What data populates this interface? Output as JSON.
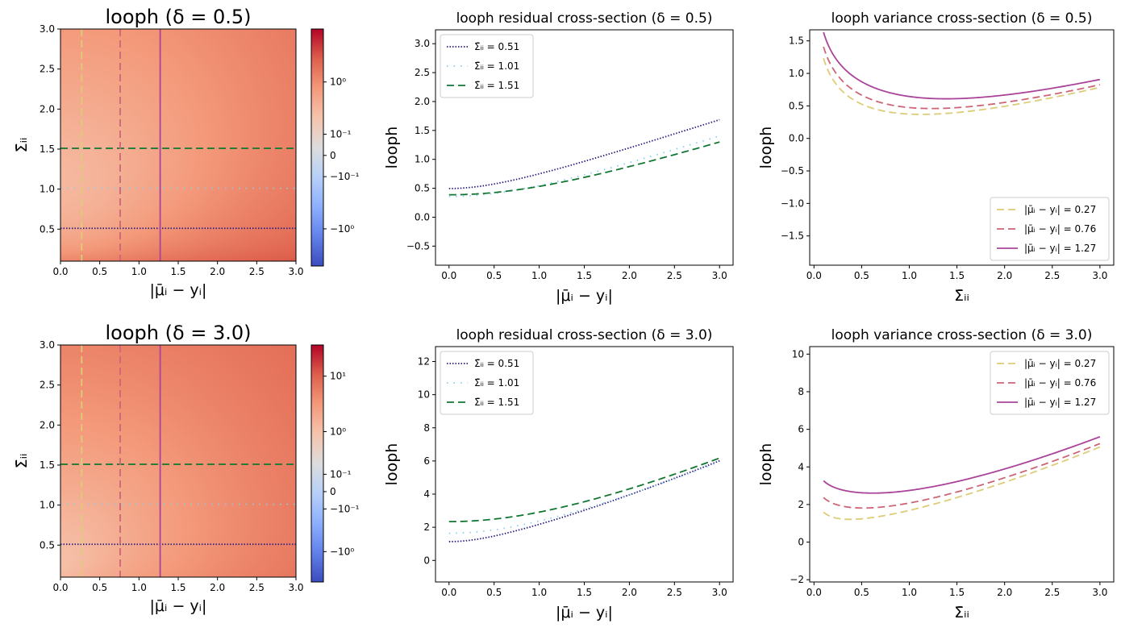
{
  "chart_data": [
    {
      "id": "heat1",
      "type": "heatmap",
      "title": "looph (δ = 0.5)",
      "xlabel": "|μ̄ᵢ − yᵢ|",
      "ylabel": "Σ̄ᵢᵢ",
      "delta": 0.5,
      "xlim": [
        0,
        3.0
      ],
      "ylim": [
        0.1,
        3.0
      ],
      "xticks": [
        "0.0",
        "0.5",
        "1.0",
        "1.5",
        "2.0",
        "2.5",
        "3.0"
      ],
      "yticks": [
        "0.5",
        "1.0",
        "1.5",
        "2.0",
        "2.5",
        "3.0"
      ],
      "colorbar": {
        "scale": "symlog",
        "ticks": [
          "10⁰",
          "10⁻¹",
          "0",
          "−10⁻¹",
          "−10⁰"
        ],
        "range": [
          -3.6,
          6.1
        ]
      },
      "overlays": [
        {
          "orient": "h",
          "value": 0.51,
          "color": "#2a1f80",
          "style": "dotted"
        },
        {
          "orient": "h",
          "value": 1.01,
          "color": "#88ccee",
          "style": "loose-dotted"
        },
        {
          "orient": "h",
          "value": 1.51,
          "color": "#117733",
          "style": "dashed"
        },
        {
          "orient": "v",
          "value": 0.27,
          "color": "#ddcc77",
          "style": "dashed"
        },
        {
          "orient": "v",
          "value": 0.76,
          "color": "#cc6677",
          "style": "dashed"
        },
        {
          "orient": "v",
          "value": 1.27,
          "color": "#aa4499",
          "style": "solid"
        }
      ]
    },
    {
      "id": "res1",
      "type": "line",
      "title": "looph residual cross-section (δ = 0.5)",
      "xlabel": "|μ̄ᵢ − yᵢ|",
      "ylabel": "looph",
      "delta": 0.5,
      "xlim": [
        -0.15,
        3.15
      ],
      "ylim": [
        -0.83,
        3.24
      ],
      "xticks": [
        0,
        0.5,
        1.0,
        1.5,
        2.0,
        2.5,
        3.0
      ],
      "xtick_labels": [
        "0.0",
        "0.5",
        "1.0",
        "1.5",
        "2.0",
        "2.5",
        "3.0"
      ],
      "yticks": [
        -0.5,
        0,
        0.5,
        1.0,
        1.5,
        2.0,
        2.5,
        3.0
      ],
      "ytick_labels": [
        "−0.5",
        "0.0",
        "0.5",
        "1.0",
        "1.5",
        "2.0",
        "2.5",
        "3.0"
      ],
      "legend_position": "upper-left",
      "series": [
        {
          "name": "Σ̄ᵢᵢ = 0.51",
          "sigma": 0.51,
          "color": "#2a1f80",
          "style": "dotted"
        },
        {
          "name": "Σ̄ᵢᵢ = 1.01",
          "sigma": 1.01,
          "color": "#88ccee",
          "style": "loose-dotted"
        },
        {
          "name": "Σ̄ᵢᵢ = 1.51",
          "sigma": 1.51,
          "color": "#117733",
          "style": "dashed"
        }
      ]
    },
    {
      "id": "var1",
      "type": "line",
      "title": "looph variance cross-section (δ = 0.5)",
      "xlabel": "Σ̄ᵢᵢ",
      "ylabel": "looph",
      "delta": 0.5,
      "xlim": [
        -0.045,
        3.145
      ],
      "ylim": [
        -1.95,
        1.67
      ],
      "xticks": [
        0,
        0.5,
        1.0,
        1.5,
        2.0,
        2.5,
        3.0
      ],
      "xtick_labels": [
        "0.0",
        "0.5",
        "1.0",
        "1.5",
        "2.0",
        "2.5",
        "3.0"
      ],
      "yticks": [
        -1.5,
        -1.0,
        -0.5,
        0,
        0.5,
        1.0,
        1.5
      ],
      "ytick_labels": [
        "−1.5",
        "−1.0",
        "−0.5",
        "0.0",
        "0.5",
        "1.0",
        "1.5"
      ],
      "legend_position": "lower-right",
      "series": [
        {
          "name": "|μ̄ᵢ − yᵢ| = 0.27",
          "r": 0.27,
          "color": "#ddcc77",
          "style": "dashed"
        },
        {
          "name": "|μ̄ᵢ − yᵢ| = 0.76",
          "r": 0.76,
          "color": "#cc6677",
          "style": "dashed"
        },
        {
          "name": "|μ̄ᵢ − yᵢ| = 1.27",
          "r": 1.27,
          "color": "#aa4499",
          "style": "solid"
        }
      ]
    },
    {
      "id": "heat2",
      "type": "heatmap",
      "title": "looph (δ = 3.0)",
      "xlabel": "|μ̄ᵢ − yᵢ|",
      "ylabel": "Σ̄ᵢᵢ",
      "delta": 3.0,
      "xlim": [
        0,
        3.0
      ],
      "ylim": [
        0.1,
        3.0
      ],
      "xticks": [
        "0.0",
        "0.5",
        "1.0",
        "1.5",
        "2.0",
        "2.5",
        "3.0"
      ],
      "yticks": [
        "0.5",
        "1.0",
        "1.5",
        "2.0",
        "2.5",
        "3.0"
      ],
      "colorbar": {
        "scale": "symlog",
        "ticks": [
          "10¹",
          "10⁰",
          "10⁻¹",
          "0",
          "−10⁻¹",
          "−10⁰"
        ],
        "range": [
          -3.6,
          35
        ]
      },
      "overlays": [
        {
          "orient": "h",
          "value": 0.51,
          "color": "#2a1f80",
          "style": "dotted"
        },
        {
          "orient": "h",
          "value": 1.01,
          "color": "#88ccee",
          "style": "loose-dotted"
        },
        {
          "orient": "h",
          "value": 1.51,
          "color": "#117733",
          "style": "dashed"
        },
        {
          "orient": "v",
          "value": 0.27,
          "color": "#ddcc77",
          "style": "dashed"
        },
        {
          "orient": "v",
          "value": 0.76,
          "color": "#cc6677",
          "style": "dashed"
        },
        {
          "orient": "v",
          "value": 1.27,
          "color": "#aa4499",
          "style": "solid"
        }
      ]
    },
    {
      "id": "res2",
      "type": "line",
      "title": "looph residual cross-section (δ = 3.0)",
      "xlabel": "|μ̄ᵢ − yᵢ|",
      "ylabel": "looph",
      "delta": 3.0,
      "xlim": [
        -0.15,
        3.15
      ],
      "ylim": [
        -1.3,
        12.9
      ],
      "xticks": [
        0,
        0.5,
        1.0,
        1.5,
        2.0,
        2.5,
        3.0
      ],
      "xtick_labels": [
        "0.0",
        "0.5",
        "1.0",
        "1.5",
        "2.0",
        "2.5",
        "3.0"
      ],
      "yticks": [
        0,
        2,
        4,
        6,
        8,
        10,
        12
      ],
      "ytick_labels": [
        "0",
        "2",
        "4",
        "6",
        "8",
        "10",
        "12"
      ],
      "legend_position": "upper-left",
      "series": [
        {
          "name": "Σ̄ᵢᵢ = 0.51",
          "sigma": 0.51,
          "color": "#2a1f80",
          "style": "dotted"
        },
        {
          "name": "Σ̄ᵢᵢ = 1.01",
          "sigma": 1.01,
          "color": "#88ccee",
          "style": "loose-dotted"
        },
        {
          "name": "Σ̄ᵢᵢ = 1.51",
          "sigma": 1.51,
          "color": "#117733",
          "style": "dashed"
        }
      ]
    },
    {
      "id": "var2",
      "type": "line",
      "title": "looph variance cross-section (δ = 3.0)",
      "xlabel": "Σ̄ᵢᵢ",
      "ylabel": "looph",
      "delta": 3.0,
      "xlim": [
        -0.045,
        3.145
      ],
      "ylim": [
        -2.12,
        10.4
      ],
      "xticks": [
        0,
        0.5,
        1.0,
        1.5,
        2.0,
        2.5,
        3.0
      ],
      "xtick_labels": [
        "0.0",
        "0.5",
        "1.0",
        "1.5",
        "2.0",
        "2.5",
        "3.0"
      ],
      "yticks": [
        -2,
        0,
        2,
        4,
        6,
        8,
        10
      ],
      "ytick_labels": [
        "−2",
        "0",
        "2",
        "4",
        "6",
        "8",
        "10"
      ],
      "legend_position": "upper-right",
      "series": [
        {
          "name": "|μ̄ᵢ − yᵢ| = 0.27",
          "r": 0.27,
          "color": "#ddcc77",
          "style": "dashed"
        },
        {
          "name": "|μ̄ᵢ − yᵢ| = 0.76",
          "r": 0.76,
          "color": "#cc6677",
          "style": "dashed"
        },
        {
          "name": "|μ̄ᵢ − yᵢ| = 1.27",
          "r": 1.27,
          "color": "#aa4499",
          "style": "solid"
        }
      ]
    }
  ]
}
